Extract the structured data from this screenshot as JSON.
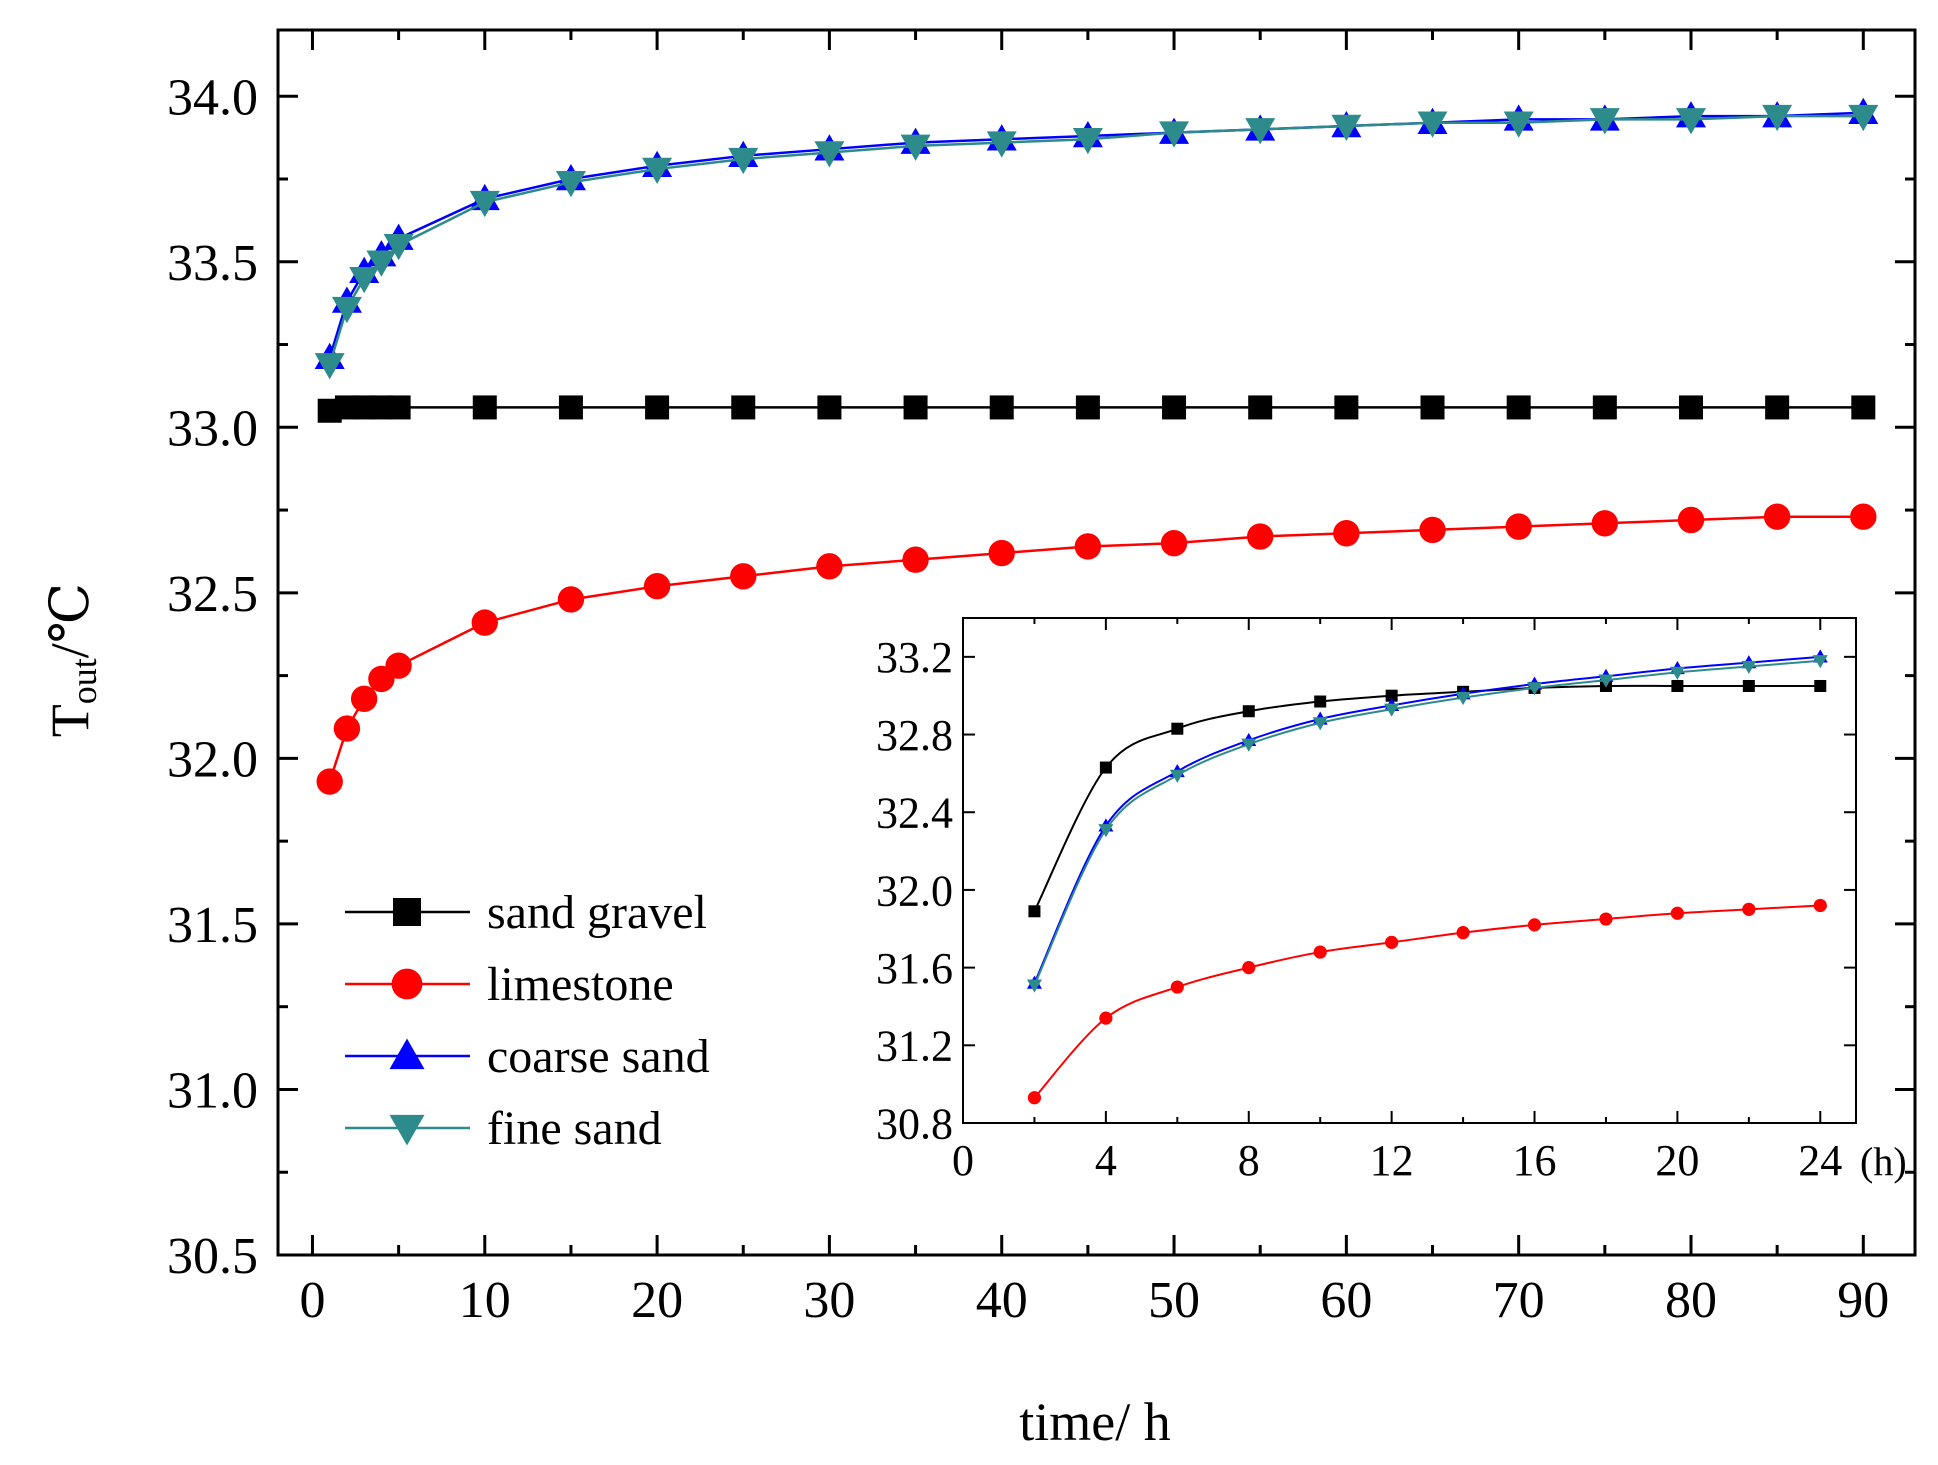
{
  "chart_data": [
    {
      "type": "line",
      "role": "main",
      "title": "",
      "xlabel": "time/ h",
      "ylabel_main": "T",
      "ylabel_sub": "out",
      "ylabel_unit": "/℃",
      "xlim": [
        -2,
        93
      ],
      "ylim": [
        30.5,
        34.2
      ],
      "xticks": [
        0,
        10,
        20,
        30,
        40,
        50,
        60,
        70,
        80,
        90
      ],
      "xtick_labels": [
        "0",
        "10",
        "20",
        "30",
        "40",
        "50",
        "60",
        "70",
        "80",
        "90"
      ],
      "yticks": [
        30.5,
        31.0,
        31.5,
        32.0,
        32.5,
        33.0,
        33.5,
        34.0
      ],
      "ytick_labels": [
        "30.5",
        "31.0",
        "31.5",
        "32.0",
        "32.5",
        "33.0",
        "33.5",
        "34.0"
      ],
      "legend": "lower-left",
      "x": [
        1,
        2,
        3,
        4,
        5,
        10,
        15,
        20,
        25,
        30,
        35,
        40,
        45,
        50,
        55,
        60,
        65,
        70,
        75,
        80,
        85,
        90
      ],
      "series": [
        {
          "name": "sand gravel",
          "color": "#000000",
          "marker": "square",
          "values": [
            33.05,
            33.06,
            33.06,
            33.06,
            33.06,
            33.06,
            33.06,
            33.06,
            33.06,
            33.06,
            33.06,
            33.06,
            33.06,
            33.06,
            33.06,
            33.06,
            33.06,
            33.06,
            33.06,
            33.06,
            33.06,
            33.06
          ]
        },
        {
          "name": "limestone",
          "color": "#ff0000",
          "marker": "circle",
          "values": [
            31.93,
            32.09,
            32.18,
            32.24,
            32.28,
            32.41,
            32.48,
            32.52,
            32.55,
            32.58,
            32.6,
            32.62,
            32.64,
            32.65,
            32.67,
            32.68,
            32.69,
            32.7,
            32.71,
            32.72,
            32.73,
            32.73
          ]
        },
        {
          "name": "coarse sand",
          "color": "#0000ff",
          "marker": "triangle-up",
          "values": [
            33.21,
            33.38,
            33.47,
            33.52,
            33.57,
            33.69,
            33.75,
            33.79,
            33.82,
            33.84,
            33.86,
            33.87,
            33.88,
            33.89,
            33.9,
            33.91,
            33.92,
            33.93,
            33.93,
            33.94,
            33.94,
            33.95
          ]
        },
        {
          "name": "fine sand",
          "color": "#2e8b8b",
          "marker": "triangle-down",
          "values": [
            33.19,
            33.36,
            33.45,
            33.5,
            33.55,
            33.68,
            33.74,
            33.78,
            33.81,
            33.83,
            33.85,
            33.86,
            33.87,
            33.89,
            33.9,
            33.91,
            33.92,
            33.92,
            33.93,
            33.93,
            33.94,
            33.94
          ]
        }
      ]
    },
    {
      "type": "line",
      "role": "inset",
      "xlabel": "",
      "x_unit_label": "(h)",
      "xlim": [
        0,
        25
      ],
      "ylim": [
        30.8,
        33.4
      ],
      "xticks": [
        0,
        4,
        8,
        12,
        16,
        20,
        24
      ],
      "xtick_labels": [
        "0",
        "4",
        "8",
        "12",
        "16",
        "20",
        "24"
      ],
      "yticks": [
        30.8,
        31.2,
        31.6,
        32.0,
        32.4,
        32.8,
        33.2
      ],
      "ytick_labels": [
        "30.8",
        "31.2",
        "31.6",
        "32.0",
        "32.4",
        "32.8",
        "33.2"
      ],
      "x": [
        2,
        4,
        6,
        8,
        10,
        12,
        14,
        16,
        18,
        20,
        22,
        24
      ],
      "series": [
        {
          "name": "sand gravel",
          "color": "#000000",
          "marker": "square",
          "values": [
            31.89,
            32.63,
            32.83,
            32.92,
            32.97,
            33.0,
            33.02,
            33.04,
            33.05,
            33.05,
            33.05,
            33.05
          ]
        },
        {
          "name": "limestone",
          "color": "#ff0000",
          "marker": "circle",
          "values": [
            30.93,
            31.34,
            31.5,
            31.6,
            31.68,
            31.73,
            31.78,
            31.82,
            31.85,
            31.88,
            31.9,
            31.92
          ]
        },
        {
          "name": "coarse sand",
          "color": "#0000ff",
          "marker": "triangle-up",
          "values": [
            31.52,
            32.33,
            32.61,
            32.77,
            32.88,
            32.95,
            33.01,
            33.06,
            33.1,
            33.14,
            33.17,
            33.2
          ]
        },
        {
          "name": "fine sand",
          "color": "#2e8b8b",
          "marker": "triangle-down",
          "values": [
            31.51,
            32.31,
            32.59,
            32.75,
            32.86,
            32.93,
            32.99,
            33.04,
            33.08,
            33.12,
            33.15,
            33.18
          ]
        }
      ]
    }
  ]
}
